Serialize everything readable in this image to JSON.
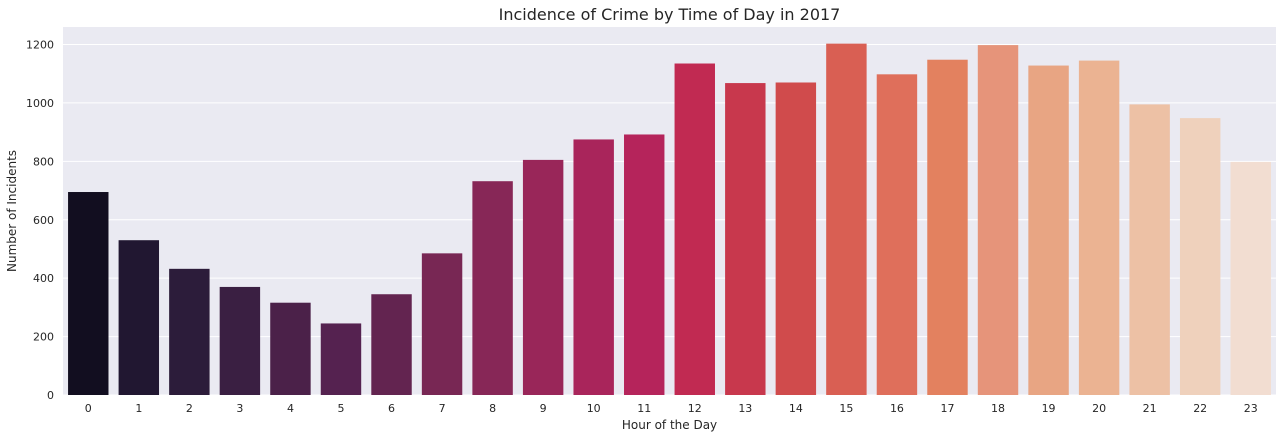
{
  "chart_data": {
    "type": "bar",
    "title": "Incidence of Crime by Time of Day in 2017",
    "xlabel": "Hour of the Day",
    "ylabel": "Number of Incidents",
    "categories": [
      "0",
      "1",
      "2",
      "3",
      "4",
      "5",
      "6",
      "7",
      "8",
      "9",
      "10",
      "11",
      "12",
      "13",
      "14",
      "15",
      "16",
      "17",
      "18",
      "19",
      "20",
      "21",
      "22",
      "23"
    ],
    "values": [
      695,
      530,
      432,
      370,
      316,
      245,
      345,
      485,
      732,
      805,
      875,
      892,
      1135,
      1068,
      1070,
      1203,
      1098,
      1148,
      1198,
      1128,
      1145,
      995,
      948,
      798
    ],
    "ylim": [
      0,
      1260
    ],
    "yticks": [
      "0",
      "200",
      "400",
      "600",
      "800",
      "1000",
      "1200"
    ],
    "grid": true,
    "background_color": "#eaeaf2",
    "grid_color": "#ffffff",
    "palette": "rocket",
    "bar_colors": [
      "#120e20",
      "#211731",
      "#2c1c3a",
      "#3a1f42",
      "#4b2149",
      "#552250",
      "#632450",
      "#782754",
      "#872757",
      "#992659",
      "#a9255b",
      "#b5245b",
      "#c12a52",
      "#c8384d",
      "#d04b4c",
      "#d95f53",
      "#df6f5b",
      "#e3815f",
      "#e6947a",
      "#e8a583",
      "#ebb392",
      "#edc1a5",
      "#efd1bc",
      "#f2ddd1"
    ]
  }
}
